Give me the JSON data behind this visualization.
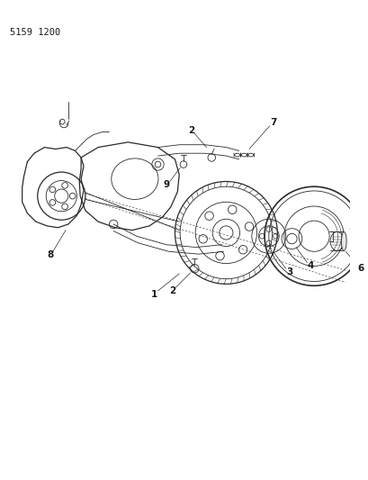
{
  "title": "5159 1200",
  "background_color": "#ffffff",
  "line_color": "#2a2a2a",
  "label_color": "#1a1a1a",
  "fig_width": 4.1,
  "fig_height": 5.33,
  "dpi": 100
}
